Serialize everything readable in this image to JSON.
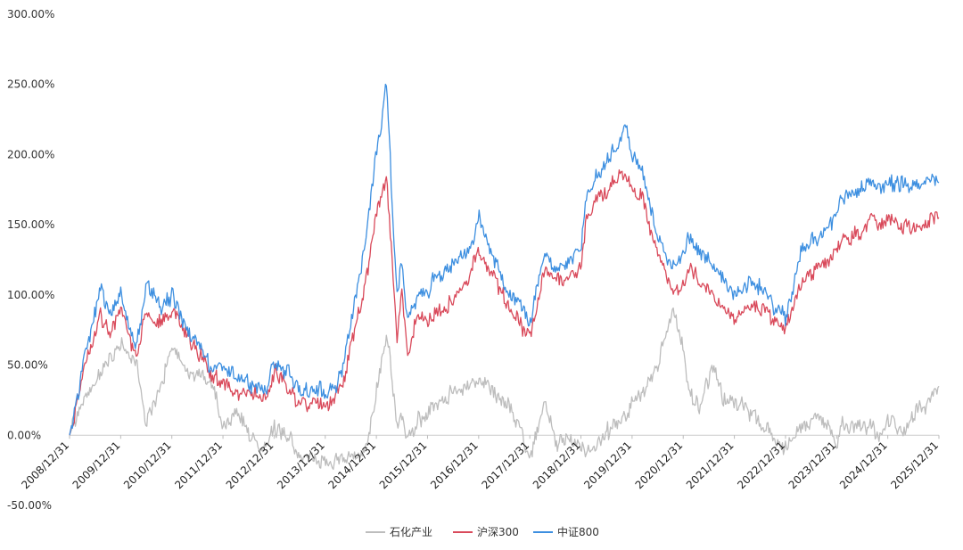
{
  "chart_data": {
    "type": "line",
    "title": "",
    "xlabel": "",
    "ylabel": "",
    "ylim": [
      -50,
      300
    ],
    "y_ticks": [
      "300.00%",
      "250.00%",
      "200.00%",
      "150.00%",
      "100.00%",
      "50.00%",
      "0.00%",
      "-50.00%"
    ],
    "x_tick_labels": [
      "2008/12/31",
      "2009/12/31",
      "2010/12/31",
      "2011/12/31",
      "2012/12/31",
      "2013/12/31",
      "2014/12/31",
      "2015/12/31",
      "2016/12/31",
      "2017/12/31",
      "2018/12/31",
      "2019/12/31",
      "2020/12/31",
      "2021/12/31",
      "2022/12/31",
      "2023/12/31",
      "2024/12/31",
      "2025/12/31"
    ],
    "grid": false,
    "legend_position": "bottom",
    "x": [
      2009.0,
      2009.3,
      2009.6,
      2009.8,
      2010.0,
      2010.3,
      2010.5,
      2010.8,
      2011.0,
      2011.3,
      2011.6,
      2011.8,
      2012.0,
      2012.3,
      2012.6,
      2012.8,
      2013.0,
      2013.3,
      2013.5,
      2013.8,
      2014.0,
      2014.3,
      2014.6,
      2014.8,
      2015.0,
      2015.2,
      2015.4,
      2015.5,
      2015.6,
      2015.8,
      2016.0,
      2016.1,
      2016.5,
      2016.8,
      2017.0,
      2017.3,
      2017.6,
      2017.9,
      2018.0,
      2018.3,
      2018.5,
      2018.8,
      2019.0,
      2019.1,
      2019.3,
      2019.6,
      2019.9,
      2020.0,
      2020.2,
      2020.5,
      2020.8,
      2021.0,
      2021.1,
      2021.3,
      2021.6,
      2021.8,
      2022.0,
      2022.3,
      2022.5,
      2022.8,
      2023.0,
      2023.3,
      2023.6,
      2023.9,
      2024.0,
      2024.1,
      2024.5,
      2024.7,
      2024.9,
      2025.0,
      2025.3,
      2025.5,
      2025.7,
      2025.9,
      2026.0
    ],
    "series": [
      {
        "name": "石化产业",
        "color": "#bdbdbd",
        "values": [
          0,
          30,
          45,
          55,
          65,
          52,
          10,
          35,
          65,
          45,
          42,
          35,
          5,
          18,
          -5,
          -10,
          5,
          0,
          -18,
          -15,
          -20,
          -15,
          -15,
          -10,
          30,
          75,
          10,
          15,
          -5,
          10,
          15,
          20,
          30,
          35,
          40,
          30,
          20,
          -5,
          -15,
          25,
          -5,
          -2,
          -5,
          -15,
          -5,
          5,
          15,
          25,
          30,
          50,
          90,
          60,
          35,
          20,
          50,
          25,
          25,
          15,
          10,
          -5,
          -10,
          5,
          15,
          5,
          -8,
          10,
          5,
          5,
          0,
          10,
          5,
          15,
          20,
          30,
          35
        ]
      },
      {
        "name": "沪深300",
        "color": "#d94a5b",
        "values": [
          0,
          50,
          85,
          75,
          90,
          55,
          85,
          80,
          90,
          70,
          55,
          40,
          40,
          30,
          30,
          25,
          45,
          35,
          20,
          25,
          20,
          30,
          80,
          110,
          160,
          185,
          70,
          105,
          60,
          85,
          80,
          85,
          95,
          110,
          135,
          110,
          90,
          75,
          70,
          120,
          110,
          115,
          120,
          150,
          165,
          180,
          185,
          175,
          170,
          130,
          100,
          110,
          120,
          110,
          100,
          90,
          80,
          95,
          90,
          80,
          75,
          110,
          120,
          125,
          130,
          140,
          145,
          155,
          150,
          155,
          150,
          148,
          150,
          152,
          155
        ]
      },
      {
        "name": "中证800",
        "color": "#3d8fe0",
        "values": [
          0,
          55,
          105,
          85,
          100,
          60,
          110,
          90,
          100,
          75,
          60,
          45,
          50,
          40,
          35,
          30,
          50,
          45,
          30,
          35,
          30,
          40,
          100,
          140,
          200,
          250,
          100,
          125,
          80,
          100,
          100,
          110,
          120,
          130,
          155,
          125,
          100,
          90,
          80,
          130,
          120,
          125,
          130,
          170,
          185,
          200,
          220,
          200,
          190,
          140,
          120,
          130,
          140,
          130,
          120,
          110,
          100,
          110,
          105,
          90,
          85,
          130,
          140,
          150,
          160,
          170,
          175,
          180,
          175,
          178,
          180,
          178,
          180,
          182,
          180
        ]
      }
    ]
  }
}
